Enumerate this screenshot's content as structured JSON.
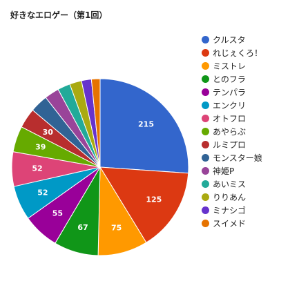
{
  "title": "好きなエロゲー（第1回）",
  "chart_data": {
    "type": "pie",
    "title": "好きなエロゲー（第1回）",
    "legend_position": "right",
    "start_angle": "12 o'clock, clockwise",
    "slices": [
      {
        "label": "クルスタ",
        "value": 215,
        "color": "#3366cc",
        "value_label": "215"
      },
      {
        "label": "れじぇくろ！",
        "value": 125,
        "color": "#dc3912",
        "value_label": "125"
      },
      {
        "label": "ミストレ",
        "value": 75,
        "color": "#ff9900",
        "value_label": "75"
      },
      {
        "label": "とのフラ",
        "value": 67,
        "color": "#109618",
        "value_label": "67"
      },
      {
        "label": "テンパラ",
        "value": 55,
        "color": "#990099",
        "value_label": "55"
      },
      {
        "label": "エンクリ",
        "value": 52,
        "color": "#0099c6",
        "value_label": "52"
      },
      {
        "label": "オトフロ",
        "value": 52,
        "color": "#dd4477",
        "value_label": "52"
      },
      {
        "label": "あやらぶ",
        "value": 39,
        "color": "#66aa00",
        "value_label": "39"
      },
      {
        "label": "ルミプロ",
        "value": 30,
        "color": "#b82e2e",
        "value_label": "30"
      },
      {
        "label": "モンスター娘",
        "value": 27,
        "color": "#316395",
        "value_label": ""
      },
      {
        "label": "神姫P",
        "value": 22,
        "color": "#994499",
        "value_label": ""
      },
      {
        "label": "あいミス",
        "value": 19,
        "color": "#22aa99",
        "value_label": ""
      },
      {
        "label": "りりあん",
        "value": 18,
        "color": "#aaaa11",
        "value_label": ""
      },
      {
        "label": "ミナシゴ",
        "value": 15,
        "color": "#6633cc",
        "value_label": ""
      },
      {
        "label": "スイメド",
        "value": 13,
        "color": "#e67300",
        "value_label": ""
      }
    ]
  }
}
